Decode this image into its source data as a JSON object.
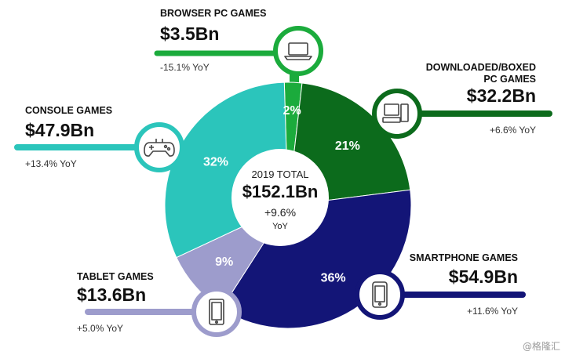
{
  "chart_data": {
    "type": "pie",
    "center": {
      "label": "2019 TOTAL",
      "total": "$152.1Bn",
      "growth": "+9.6%",
      "growth_unit": "YoY"
    },
    "segments": [
      {
        "name": "BROWSER PC GAMES",
        "name_lines": [
          "BROWSER PC GAMES"
        ],
        "value": 3.5,
        "value_label": "$3.5Bn",
        "share": 2,
        "share_label": "2%",
        "yoy": "-15.1% YoY",
        "color": "#1bab3c",
        "icon": "laptop-icon"
      },
      {
        "name": "DOWNLOADED/BOXED PC GAMES",
        "name_lines": [
          "DOWNLOADED/BOXED",
          "PC GAMES"
        ],
        "value": 32.2,
        "value_label": "$32.2Bn",
        "share": 21,
        "share_label": "21%",
        "yoy": "+6.6% YoY",
        "color": "#0c6b1c",
        "icon": "desktop-pc-icon"
      },
      {
        "name": "SMARTPHONE GAMES",
        "name_lines": [
          "SMARTPHONE GAMES"
        ],
        "value": 54.9,
        "value_label": "$54.9Bn",
        "share": 36,
        "share_label": "36%",
        "yoy": "+11.6% YoY",
        "color": "#131577",
        "icon": "smartphone-icon"
      },
      {
        "name": "TABLET GAMES",
        "name_lines": [
          "TABLET GAMES"
        ],
        "value": 13.6,
        "value_label": "$13.6Bn",
        "share": 9,
        "share_label": "9%",
        "yoy": "+5.0% YoY",
        "color": "#9d9ccc",
        "icon": "tablet-icon"
      },
      {
        "name": "CONSOLE GAMES",
        "name_lines": [
          "CONSOLE GAMES"
        ],
        "value": 47.9,
        "value_label": "$47.9Bn",
        "share": 32,
        "share_label": "32%",
        "yoy": "+13.4% YoY",
        "color": "#2bc5bb",
        "icon": "gamepad-icon"
      }
    ]
  },
  "watermark": "@格隆汇"
}
